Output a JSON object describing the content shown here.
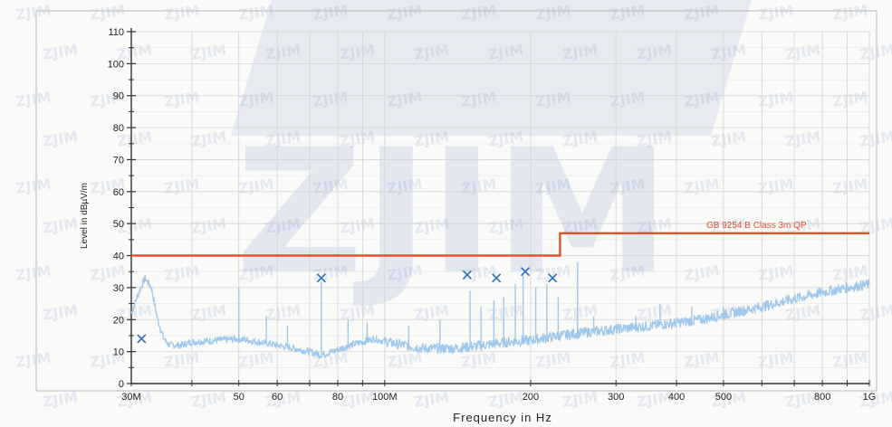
{
  "watermark": {
    "text": "ZJIM",
    "small_text": "ZJIM",
    "color": "#2a4fb0"
  },
  "chart_data": {
    "type": "line",
    "xlabel": "Frequency in Hz",
    "ylabel": "Level in dBµV/m",
    "x_scale": "log",
    "xlim": [
      30000000,
      1000000000
    ],
    "ylim": [
      0,
      110
    ],
    "grid": true,
    "x_ticks": [
      {
        "value": 30000000,
        "label": "30M"
      },
      {
        "value": 50000000,
        "label": "50"
      },
      {
        "value": 60000000,
        "label": "60"
      },
      {
        "value": 80000000,
        "label": "80"
      },
      {
        "value": 100000000,
        "label": "100M"
      },
      {
        "value": 200000000,
        "label": "200"
      },
      {
        "value": 300000000,
        "label": "300"
      },
      {
        "value": 400000000,
        "label": "400"
      },
      {
        "value": 500000000,
        "label": "500"
      },
      {
        "value": 800000000,
        "label": "800"
      },
      {
        "value": 1000000000,
        "label": "1G"
      }
    ],
    "y_ticks": [
      {
        "value": 0,
        "label": "0"
      },
      {
        "value": 10,
        "label": "10"
      },
      {
        "value": 20,
        "label": "20"
      },
      {
        "value": 30,
        "label": "30"
      },
      {
        "value": 40,
        "label": "40"
      },
      {
        "value": 50,
        "label": "50"
      },
      {
        "value": 60,
        "label": "60"
      },
      {
        "value": 70,
        "label": "70"
      },
      {
        "value": 80,
        "label": "80"
      },
      {
        "value": 90,
        "label": "90"
      },
      {
        "value": 100,
        "label": "100"
      },
      {
        "value": 110,
        "label": "110"
      }
    ],
    "limit_line": {
      "name": "GB 9254 B Class 3m QP",
      "color": "#e0532c",
      "points": [
        [
          30000000,
          40
        ],
        [
          230000000,
          40
        ],
        [
          230000000,
          47
        ],
        [
          1000000000,
          47
        ]
      ]
    },
    "series": [
      {
        "color": "#9fc8ea",
        "x": [
          30000000,
          31000000,
          32000000,
          33000000,
          34000000,
          35000000,
          36000000,
          38000000,
          40000000,
          45000000,
          50000000,
          55000000,
          60000000,
          65000000,
          70000000,
          74000000,
          78000000,
          85000000,
          95000000,
          105000000,
          120000000,
          140000000,
          160000000,
          180000000,
          200000000,
          230000000,
          260000000,
          300000000,
          350000000,
          400000000,
          450000000,
          500000000,
          600000000,
          700000000,
          800000000,
          900000000,
          1000000000
        ],
        "y": [
          22,
          28,
          33,
          30,
          20,
          14,
          12,
          12,
          13,
          13.5,
          14,
          13,
          12,
          11,
          10,
          9,
          10,
          12,
          14,
          12.5,
          11,
          11,
          12,
          13,
          13.5,
          15,
          16,
          17,
          18,
          19,
          20,
          21.5,
          24,
          26.5,
          28.5,
          30,
          31
        ]
      }
    ],
    "spikes": [
      {
        "x": 50000000,
        "y": 30
      },
      {
        "x": 57000000,
        "y": 21
      },
      {
        "x": 63000000,
        "y": 18
      },
      {
        "x": 74000000,
        "y": 32
      },
      {
        "x": 84000000,
        "y": 20
      },
      {
        "x": 92000000,
        "y": 19
      },
      {
        "x": 112000000,
        "y": 18
      },
      {
        "x": 130000000,
        "y": 20
      },
      {
        "x": 150000000,
        "y": 29
      },
      {
        "x": 158000000,
        "y": 24
      },
      {
        "x": 168000000,
        "y": 26
      },
      {
        "x": 176000000,
        "y": 27
      },
      {
        "x": 186000000,
        "y": 31
      },
      {
        "x": 193000000,
        "y": 34
      },
      {
        "x": 205000000,
        "y": 30
      },
      {
        "x": 216000000,
        "y": 31
      },
      {
        "x": 228000000,
        "y": 27
      },
      {
        "x": 250000000,
        "y": 38
      },
      {
        "x": 270000000,
        "y": 21
      },
      {
        "x": 330000000,
        "y": 21
      },
      {
        "x": 370000000,
        "y": 25
      },
      {
        "x": 430000000,
        "y": 24
      },
      {
        "x": 500000000,
        "y": 24
      }
    ],
    "markers": [
      {
        "x": 31500000,
        "y": 14
      },
      {
        "x": 74000000,
        "y": 33
      },
      {
        "x": 148000000,
        "y": 34
      },
      {
        "x": 170000000,
        "y": 33
      },
      {
        "x": 195000000,
        "y": 35
      },
      {
        "x": 222000000,
        "y": 33
      }
    ],
    "marker_color": "#2a6fb5"
  }
}
